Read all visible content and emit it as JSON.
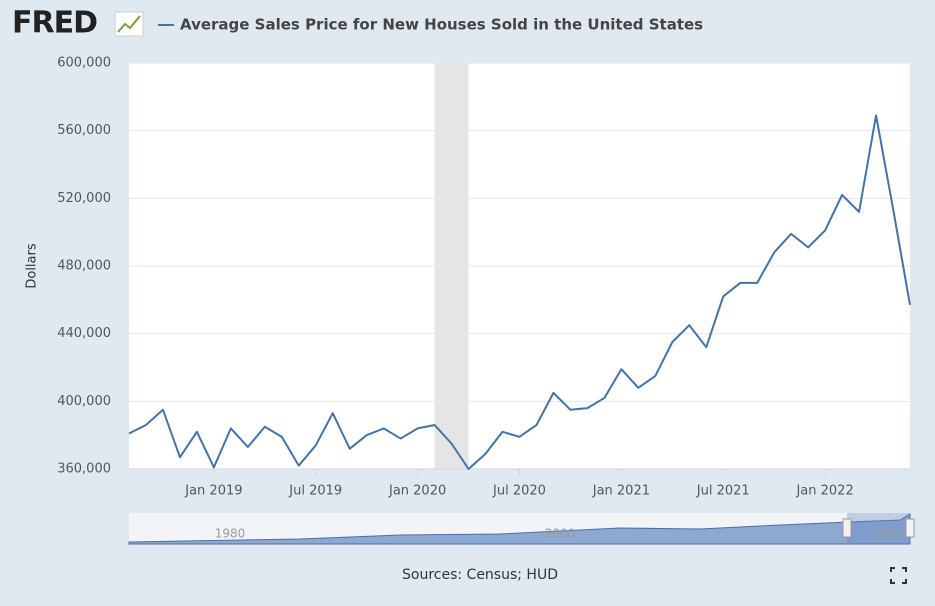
{
  "logo": "FRED",
  "chart_data": {
    "type": "line",
    "title": "Average Sales Price for New Houses Sold in the United States",
    "ylabel": "Dollars",
    "source": "Sources: Census; HUD",
    "x": [
      "2018-08",
      "2018-09",
      "2018-10",
      "2018-11",
      "2018-12",
      "2019-01",
      "2019-02",
      "2019-03",
      "2019-04",
      "2019-05",
      "2019-06",
      "2019-07",
      "2019-08",
      "2019-09",
      "2019-10",
      "2019-11",
      "2019-12",
      "2020-01",
      "2020-02",
      "2020-03",
      "2020-04",
      "2020-05",
      "2020-06",
      "2020-07",
      "2020-08",
      "2020-09",
      "2020-10",
      "2020-11",
      "2020-12",
      "2021-01",
      "2021-02",
      "2021-03",
      "2021-04",
      "2021-05",
      "2021-06",
      "2021-07",
      "2021-08",
      "2021-09",
      "2021-10",
      "2021-11",
      "2021-12",
      "2022-01",
      "2022-02",
      "2022-03",
      "2022-04",
      "2022-05",
      "2022-06"
    ],
    "series": [
      {
        "name": "Average Sales Price for New Houses Sold in the United States",
        "color": "#4572a7",
        "values": [
          381000,
          386000,
          395000,
          367000,
          382000,
          361000,
          384000,
          373000,
          385000,
          379000,
          362000,
          374000,
          393000,
          372000,
          380000,
          384000,
          378000,
          384000,
          386000,
          375000,
          360000,
          369000,
          382000,
          379000,
          386000,
          405000,
          395000,
          396000,
          402000,
          419000,
          408000,
          415000,
          435000,
          445000,
          432000,
          462000,
          470000,
          470000,
          488000,
          499000,
          491000,
          501000,
          522000,
          512000,
          569000,
          514000,
          457000
        ]
      }
    ],
    "xlim": [
      "2018-08",
      "2022-06"
    ],
    "xticks": [
      {
        "value": "2019-01",
        "label": "Jan 2019"
      },
      {
        "value": "2019-07",
        "label": "Jul 2019"
      },
      {
        "value": "2020-01",
        "label": "Jan 2020"
      },
      {
        "value": "2020-07",
        "label": "Jul 2020"
      },
      {
        "value": "2021-01",
        "label": "Jan 2021"
      },
      {
        "value": "2021-07",
        "label": "Jul 2021"
      },
      {
        "value": "2022-01",
        "label": "Jan 2022"
      }
    ],
    "ylim": [
      360000,
      600000
    ],
    "yticks": [
      {
        "value": 360000,
        "label": "360,000"
      },
      {
        "value": 400000,
        "label": "400,000"
      },
      {
        "value": 440000,
        "label": "440,000"
      },
      {
        "value": 480000,
        "label": "480,000"
      },
      {
        "value": 520000,
        "label": "520,000"
      },
      {
        "value": 560000,
        "label": "560,000"
      },
      {
        "value": 600000,
        "label": "600,000"
      }
    ],
    "grid": true,
    "recession": [
      "2020-02",
      "2020-04"
    ],
    "navigator_labels": [
      "1980",
      "2000",
      "2020"
    ]
  }
}
